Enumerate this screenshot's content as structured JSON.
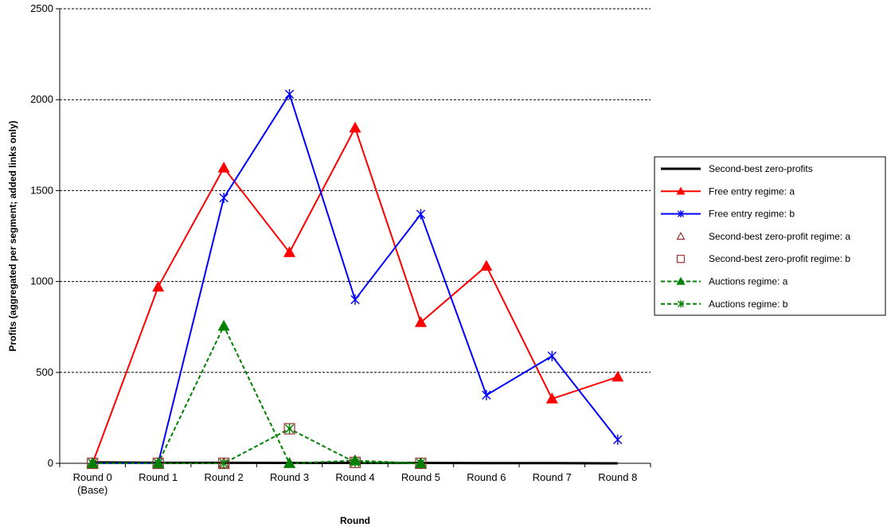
{
  "chart_data": {
    "type": "line",
    "xlabel": "Round",
    "ylabel": "Profits (aggregated per segment; added links only)",
    "categories": [
      [
        "Round 0",
        "(Base)"
      ],
      [
        "Round 1"
      ],
      [
        "Round 2"
      ],
      [
        "Round 3"
      ],
      [
        "Round 4"
      ],
      [
        "Round 5"
      ],
      [
        "Round 6"
      ],
      [
        "Round 7"
      ],
      [
        "Round 8"
      ]
    ],
    "ylim": [
      0,
      2500
    ],
    "yticks": [
      0,
      500,
      1000,
      1500,
      2000,
      2500
    ],
    "grid": "horizontal dashed",
    "legend_position": "right",
    "series": [
      {
        "name": "Second-best zero-profits",
        "color": "#000000",
        "dash": "solid",
        "width": 3,
        "marker": "none",
        "marker_fill": "none",
        "values": [
          5,
          3,
          3,
          2,
          2,
          2,
          1,
          1,
          0
        ]
      },
      {
        "name": "Free entry regime: a",
        "color": "#ff0000",
        "dash": "solid",
        "width": 2,
        "marker": "triangle",
        "marker_fill": "#ff0000",
        "values": [
          0,
          970,
          1625,
          1160,
          1845,
          775,
          1085,
          355,
          475
        ]
      },
      {
        "name": "Free entry regime: b",
        "color": "#0000ff",
        "dash": "solid",
        "width": 2,
        "marker": "asterisk",
        "marker_fill": "none",
        "values": [
          0,
          0,
          1460,
          2030,
          900,
          1370,
          375,
          590,
          130
        ]
      },
      {
        "name": "Second-best zero-profit regime: a",
        "color": "#993333",
        "dash": "none",
        "width": 0,
        "marker": "triangle-open",
        "marker_fill": "none",
        "values": [
          0,
          0,
          0,
          0,
          15,
          0,
          null,
          null,
          null
        ]
      },
      {
        "name": "Second-best zero-profit regime: b",
        "color": "#993333",
        "dash": "none",
        "width": 0,
        "marker": "square-open",
        "marker_fill": "none",
        "values": [
          0,
          0,
          0,
          190,
          5,
          0,
          null,
          null,
          null
        ]
      },
      {
        "name": "Auctions regime: a",
        "color": "#008000",
        "dash": "dashed",
        "width": 2,
        "marker": "triangle",
        "marker_fill": "#008000",
        "values": [
          0,
          0,
          755,
          0,
          15,
          0,
          null,
          null,
          null
        ]
      },
      {
        "name": "Auctions regime: b",
        "color": "#008000",
        "dash": "dashed",
        "width": 2,
        "marker": "asterisk",
        "marker_fill": "none",
        "values": [
          0,
          0,
          0,
          190,
          5,
          0,
          null,
          null,
          null
        ]
      }
    ]
  }
}
